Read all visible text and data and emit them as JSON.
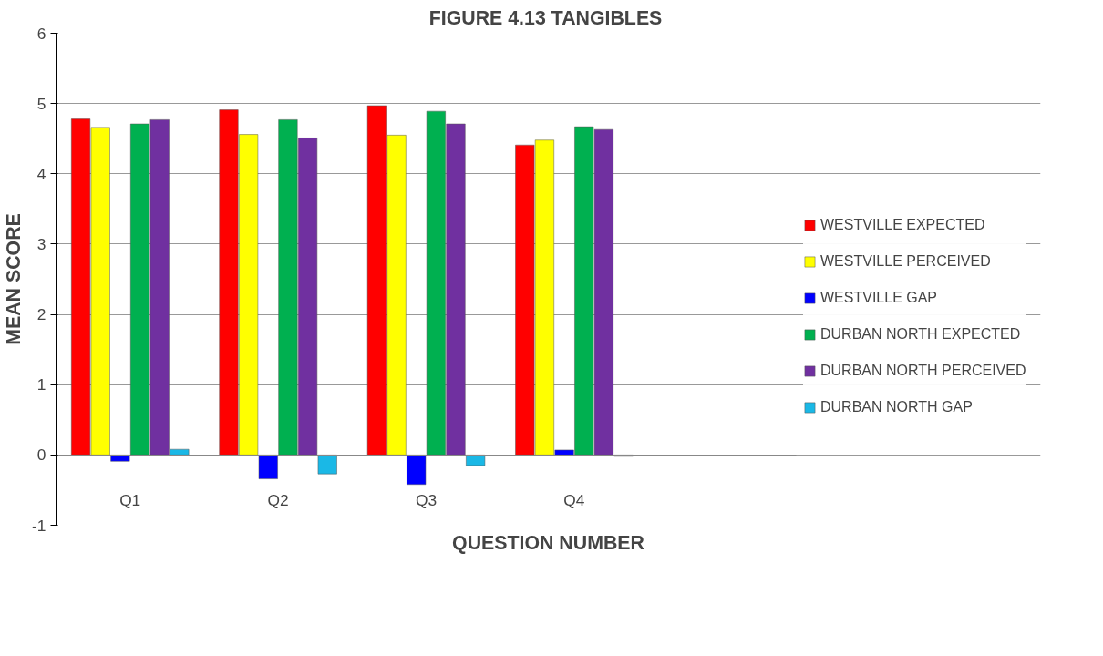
{
  "chart_data": {
    "type": "bar",
    "title": "FIGURE 4.13  TANGIBLES",
    "xlabel": "QUESTION NUMBER",
    "ylabel": "MEAN SCORE",
    "categories": [
      "Q1",
      "Q2",
      "Q3",
      "Q4",
      null
    ],
    "series": [
      {
        "name": "WESTVILLE EXPECTED",
        "color": "#ff0000",
        "values": [
          4.78,
          4.91,
          4.97,
          4.41,
          null
        ]
      },
      {
        "name": "WESTVILLE PERCEIVED",
        "color": "#ffff00",
        "values": [
          4.66,
          4.56,
          4.55,
          4.48,
          null
        ]
      },
      {
        "name": "WESTVILLE GAP",
        "color": "#0000ff",
        "values": [
          -0.09,
          -0.34,
          -0.42,
          0.07,
          null
        ]
      },
      {
        "name": "DURBAN NORTH EXPECTED",
        "color": "#00b050",
        "values": [
          4.71,
          4.77,
          4.89,
          4.67,
          null
        ]
      },
      {
        "name": "DURBAN NORTH PERCEIVED",
        "color": "#7030a0",
        "values": [
          4.77,
          4.51,
          4.71,
          4.63,
          null
        ]
      },
      {
        "name": "DURBAN NORTH GAP",
        "color": "#1ab8e6",
        "values": [
          0.08,
          -0.27,
          -0.15,
          -0.02,
          null
        ]
      }
    ],
    "ylim": [
      -1,
      6
    ],
    "yticks": [
      -1,
      0,
      1,
      2,
      3,
      4,
      5,
      6
    ],
    "grid": "y",
    "legend": "right"
  }
}
